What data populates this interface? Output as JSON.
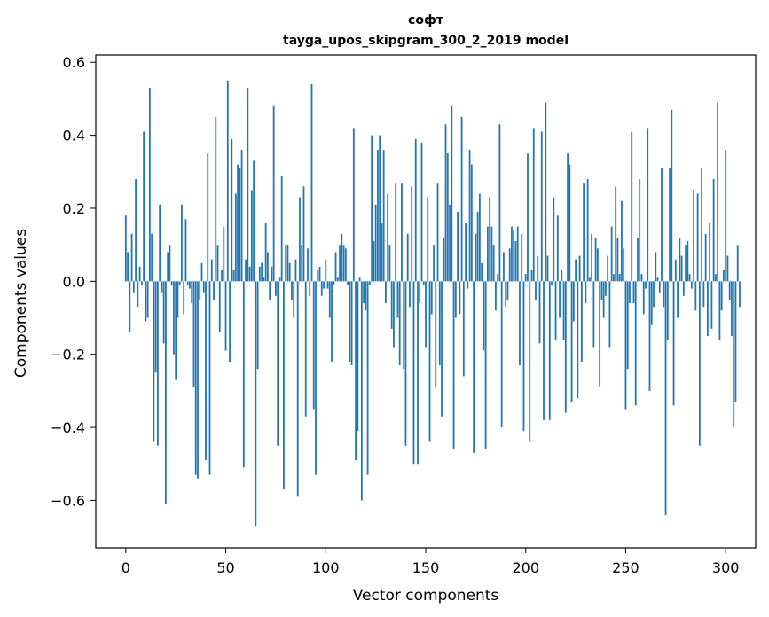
{
  "chart_data": {
    "type": "bar",
    "title": "софт",
    "subtitle": "tayga_upos_skipgram_300_2_2019 model",
    "xlabel": "Vector components",
    "ylabel": "Components values",
    "xlim": [
      -15,
      315
    ],
    "ylim": [
      -0.73,
      0.62
    ],
    "xticks": [
      0,
      50,
      100,
      150,
      200,
      250,
      300
    ],
    "yticks": [
      -0.6,
      -0.4,
      -0.2,
      0.0,
      0.2,
      0.4,
      0.6
    ],
    "xtick_labels": [
      "0",
      "50",
      "100",
      "150",
      "200",
      "250",
      "300"
    ],
    "ytick_labels": [
      "−0.6",
      "−0.4",
      "−0.2",
      "0.0",
      "0.2",
      "0.4",
      "0.6"
    ],
    "bar_color": "#1f77b4",
    "values": [
      0.18,
      0.08,
      -0.14,
      0.13,
      -0.03,
      0.28,
      -0.07,
      0.04,
      -0.01,
      0.41,
      -0.11,
      -0.1,
      0.53,
      0.13,
      -0.44,
      -0.25,
      -0.45,
      0.21,
      -0.03,
      -0.17,
      -0.61,
      0.08,
      0.1,
      -0.01,
      -0.2,
      -0.27,
      -0.1,
      -0.01,
      0.21,
      -0.09,
      0.17,
      -0.01,
      -0.02,
      -0.06,
      -0.29,
      -0.53,
      -0.54,
      -0.05,
      0.05,
      -0.03,
      -0.49,
      0.35,
      -0.53,
      0.06,
      -0.05,
      0.45,
      0.1,
      -0.14,
      0.03,
      0.15,
      -0.19,
      0.55,
      -0.22,
      0.39,
      0.03,
      0.24,
      0.32,
      0.31,
      0.36,
      -0.51,
      0.06,
      0.53,
      0.04,
      0.25,
      0.33,
      -0.67,
      -0.24,
      0.04,
      0.05,
      0.01,
      0.16,
      0.08,
      -0.05,
      0.04,
      0.48,
      -0.04,
      -0.45,
      0.01,
      0.29,
      -0.57,
      0.1,
      0.1,
      0.05,
      -0.05,
      -0.1,
      0.06,
      -0.59,
      0.23,
      0.1,
      0.26,
      -0.37,
      0.09,
      -0.04,
      0.54,
      -0.35,
      -0.53,
      0.03,
      0.04,
      -0.04,
      -0.02,
      0.06,
      -0.02,
      -0.1,
      -0.22,
      -0.01,
      0.08,
      0.01,
      0.1,
      0.13,
      0.1,
      0.09,
      -0.01,
      -0.22,
      -0.23,
      0.42,
      -0.49,
      -0.41,
      0.01,
      -0.6,
      -0.06,
      -0.08,
      -0.53,
      -0.01,
      0.4,
      0.11,
      0.21,
      0.36,
      0.4,
      0.16,
      0.36,
      -0.06,
      0.24,
      0.1,
      -0.13,
      -0.18,
      0.27,
      -0.1,
      -0.23,
      0.27,
      -0.24,
      -0.45,
      0.13,
      -0.07,
      0.26,
      -0.5,
      0.39,
      -0.5,
      -0.06,
      0.38,
      -0.01,
      -0.18,
      0.23,
      -0.44,
      -0.09,
      0.1,
      -0.29,
      0.27,
      -0.23,
      -0.37,
      0.12,
      0.43,
      0.35,
      0.21,
      0.48,
      -0.46,
      -0.1,
      0.19,
      -0.09,
      0.45,
      -0.26,
      0.16,
      -0.02,
      0.36,
      0.32,
      -0.47,
      0.13,
      0.19,
      0.24,
      0.05,
      -0.19,
      -0.46,
      0.15,
      0.23,
      0.15,
      0.1,
      -0.08,
      0.02,
      0.43,
      -0.4,
      0.08,
      -0.07,
      -0.05,
      0.09,
      0.15,
      0.14,
      0.11,
      0.15,
      -0.23,
      0.13,
      -0.41,
      0.02,
      0.35,
      -0.44,
      0.03,
      0.42,
      -0.05,
      0.07,
      -0.17,
      0.41,
      -0.38,
      0.49,
      0.07,
      -0.38,
      -0.01,
      0.23,
      -0.16,
      0.18,
      -0.1,
      0.03,
      -0.16,
      -0.36,
      0.35,
      0.32,
      -0.33,
      -0.11,
      0.06,
      -0.32,
      0.07,
      -0.22,
      0.27,
      -0.06,
      0.28,
      0.01,
      0.13,
      -0.18,
      0.12,
      0.09,
      -0.29,
      -0.05,
      -0.1,
      -0.04,
      0.07,
      -0.18,
      0.15,
      0.02,
      0.26,
      0.12,
      0.02,
      0.22,
      0.09,
      -0.35,
      -0.24,
      -0.06,
      0.41,
      -0.06,
      -0.34,
      0.12,
      0.28,
      0.02,
      -0.09,
      -0.02,
      0.42,
      -0.3,
      -0.12,
      -0.07,
      0.08,
      0.01,
      -0.03,
      0.31,
      -0.07,
      -0.64,
      -0.16,
      0.31,
      0.47,
      -0.34,
      0.06,
      -0.1,
      0.12,
      0.07,
      -0.04,
      0.1,
      0.11,
      0.02,
      -0.02,
      0.25,
      -0.08,
      0.24,
      -0.45,
      0.31,
      -0.07,
      0.13,
      -0.15,
      0.16,
      -0.13,
      0.28,
      0.02,
      0.49,
      -0.16,
      -0.08,
      0.03,
      0.36,
      0.07,
      -0.05,
      -0.15,
      -0.4,
      -0.33,
      0.1,
      -0.07
    ]
  }
}
